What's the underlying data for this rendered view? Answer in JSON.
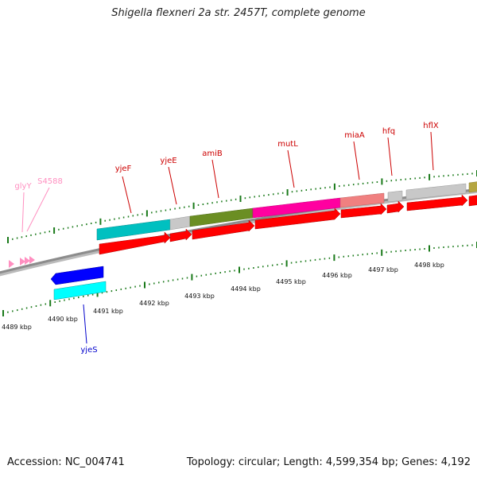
{
  "title": "Shigella flexneri 2a str. 2457T, complete genome",
  "accession": "Accession: NC_004741",
  "summary": "Topology: circular; Length: 4,599,354 bp; Genes: 4,192",
  "colors": {
    "track": "#8c8c8c",
    "tick": "#1a7a1a",
    "cds": "#ff0000",
    "label_forward": "#cc0000",
    "label_reverse": "#0000cc",
    "label_rna": "#ff8fc0"
  },
  "kbp_labels": [
    "4489 kbp",
    "4490 kbp",
    "4491 kbp",
    "4492 kbp",
    "4493 kbp",
    "4494 kbp",
    "4495 kbp",
    "4496 kbp",
    "4497 kbp",
    "4498 kbp"
  ],
  "genes_forward": [
    {
      "name": "yjeF",
      "color": "#00c0c0"
    },
    {
      "name": "yjeE",
      "color": "#c0c0c0"
    },
    {
      "name": "amiB",
      "color": "#6b8e23"
    },
    {
      "name": "mutL",
      "color": "#ff00a0"
    },
    {
      "name": "miaA",
      "color": "#f08080"
    },
    {
      "name": "hfq",
      "color": "#c0c0c0"
    },
    {
      "name": "hflX",
      "color": "#c0c0c0"
    }
  ],
  "genes_reverse": [
    {
      "name": "yjeS",
      "color": "#0000ff",
      "cds_color": "#00ffff"
    }
  ],
  "rna_features": [
    {
      "name": "glyY"
    },
    {
      "name": "S4588"
    }
  ]
}
